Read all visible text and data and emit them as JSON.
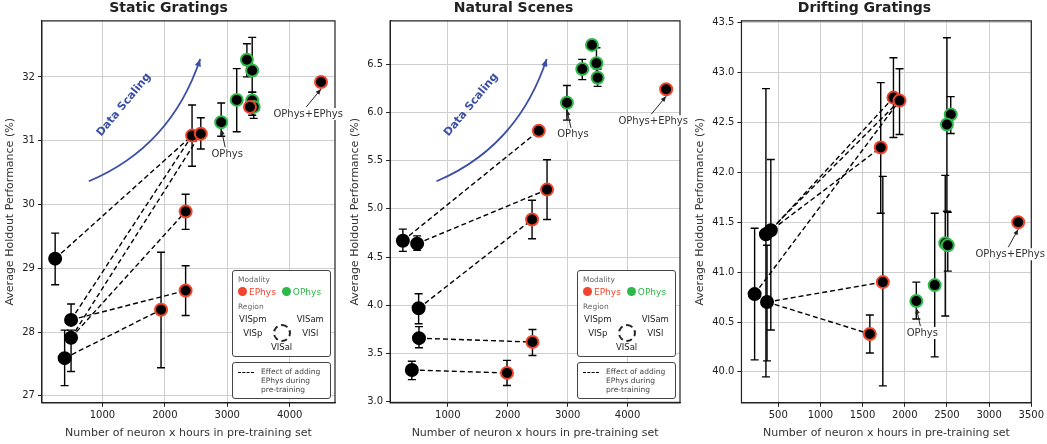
{
  "chart_data": [
    {
      "type": "scatter",
      "title": "Static Gratings",
      "xlabel": "Number of neuron x hours in pre-training set",
      "ylabel": "Average Holdout Performance (%)",
      "xlim": [
        30,
        4727
      ],
      "ylim": [
        26.89,
        32.88
      ],
      "xticks": [
        1000,
        2000,
        3000,
        4000
      ],
      "yticks": [
        27,
        28,
        29,
        30,
        31,
        32
      ],
      "grid": true,
      "legend": "bottom right",
      "legend_title": "Modality",
      "annotations": [
        "Data Scaling",
        "Region",
        "VISpm",
        "VISam",
        "VISp",
        "VISl",
        "VISal",
        {
          "text": "OPhys",
          "x": 2903,
          "y": 31.29
        },
        {
          "text": "OPhys+EPhys",
          "x": 4503,
          "y": 31.92
        }
      ],
      "series": [
        {
          "name": "EPhys",
          "color": "#f0442c",
          "marker": "circle",
          "x": [
            2436,
            2576,
            2333,
            2333,
            1939,
            4503,
            3364
          ],
          "values": [
            31.08,
            31.11,
            29.89,
            28.65,
            28.35,
            31.92,
            31.53
          ],
          "errors": [
            [
              30.6,
              31.56
            ],
            [
              30.87,
              31.36
            ],
            [
              29.61,
              30.16
            ],
            [
              28.26,
              29.04
            ],
            [
              27.44,
              29.25
            ],
            null,
            null
          ]
        },
        {
          "name": "OPhys",
          "color": "#2db84a",
          "marker": "circle",
          "x": [
            2903,
            3152,
            3315,
            3400,
            3400,
            3424
          ],
          "values": [
            31.29,
            31.64,
            32.27,
            32.1,
            31.63,
            31.53
          ],
          "errors": [
            [
              31.07,
              31.59
            ],
            [
              31.14,
              32.13
            ],
            [
              32.0,
              32.52
            ],
            [
              31.76,
              32.62
            ],
            [
              31.4,
              31.76
            ],
            [
              31.35,
              31.6
            ]
          ]
        },
        {
          "color": "#000000",
          "marker": "circle",
          "x": [
            242,
            497,
            497,
            394
          ],
          "values": [
            29.15,
            28.19,
            27.91,
            27.59
          ],
          "errors": [
            [
              28.74,
              29.55
            ],
            [
              28.19,
              28.44
            ],
            [
              27.38,
              28.03
            ],
            [
              27.16,
              28.03
            ]
          ]
        },
        {
          "name": "Effect of adding EPhys during pre-training",
          "color": "#000000",
          "type": "line",
          "line_style": "dashed",
          "marker": "none",
          "x": [
            242,
            2436
          ],
          "values": [
            29.15,
            31.08
          ]
        },
        {
          "color": "#000000",
          "type": "line",
          "line_style": "dashed",
          "marker": "none",
          "x": [
            497,
            2436
          ],
          "values": [
            28.19,
            31.08
          ]
        },
        {
          "color": "#000000",
          "type": "line",
          "line_style": "dashed",
          "marker": "none",
          "x": [
            497,
            2576
          ],
          "values": [
            27.91,
            31.11
          ]
        },
        {
          "color": "#000000",
          "type": "line",
          "line_style": "dashed",
          "marker": "none",
          "x": [
            497,
            2333
          ],
          "values": [
            27.91,
            29.89
          ]
        },
        {
          "color": "#000000",
          "type": "line",
          "line_style": "dashed",
          "marker": "none",
          "x": [
            497,
            2333
          ],
          "values": [
            28.19,
            28.65
          ]
        },
        {
          "color": "#000000",
          "type": "line",
          "line_style": "dashed",
          "marker": "none",
          "x": [
            394,
            1939
          ],
          "values": [
            27.59,
            28.35
          ]
        }
      ]
    },
    {
      "type": "scatter",
      "title": "Natural Scenes",
      "xlabel": "Number of neuron x hours in pre-training set",
      "ylabel": "Average Holdout Performance (%)",
      "xlim": [
        37,
        4875
      ],
      "ylim": [
        2.99,
        6.95
      ],
      "xticks": [
        1000,
        2000,
        3000,
        4000
      ],
      "yticks": [
        {
          "value": 3,
          "label": "3.0"
        },
        3.5,
        {
          "value": 4,
          "label": "4.0"
        },
        4.5,
        {
          "value": 5,
          "label": "5.0"
        },
        5.5,
        {
          "value": 6,
          "label": "6.0"
        },
        6.5
      ],
      "grid": true,
      "legend": "bottom right",
      "legend_title": "Modality",
      "annotations": [
        "Data Scaling",
        "Region",
        "VISpm",
        "VISam",
        "VISp",
        "VISl",
        "VISal",
        {
          "text": "OPhys",
          "x": 2988,
          "y": 6.1
        },
        {
          "text": "OPhys+EPhys",
          "x": 4644,
          "y": 6.24
        }
      ],
      "series": [
        {
          "name": "EPhys",
          "color": "#f0442c",
          "marker": "circle",
          "x": [
            2519,
            2656,
            2406,
            2413,
            1988,
            4644
          ],
          "values": [
            5.81,
            5.2,
            4.89,
            3.62,
            3.3,
            6.24
          ],
          "errors": [
            null,
            [
              4.89,
              5.51
            ],
            [
              4.69,
              5.09
            ],
            [
              3.48,
              3.75
            ],
            [
              3.17,
              3.43
            ],
            null
          ]
        },
        {
          "name": "OPhys",
          "color": "#2db84a",
          "marker": "circle",
          "x": [
            2988,
            3244,
            3406,
            3481,
            3500
          ],
          "values": [
            6.1,
            6.45,
            6.7,
            6.51,
            6.36
          ],
          "errors": [
            [
              5.92,
              6.28
            ],
            [
              6.34,
              6.55
            ],
            null,
            [
              6.36,
              6.67
            ],
            [
              6.27,
              6.45
            ]
          ]
        },
        {
          "color": "#000000",
          "marker": "circle",
          "x": [
            250,
            488,
            513,
            519,
            400
          ],
          "values": [
            4.67,
            4.64,
            3.97,
            3.66,
            3.33
          ],
          "errors": [
            [
              4.56,
              4.79
            ],
            [
              4.57,
              4.72
            ],
            [
              3.81,
              4.12
            ],
            [
              3.56,
              3.78
            ],
            [
              3.23,
              3.42
            ]
          ]
        },
        {
          "name": "Effect of adding EPhys during pre-training",
          "color": "#000000",
          "type": "line",
          "line_style": "dashed",
          "marker": "none",
          "x": [
            250,
            2519
          ],
          "values": [
            4.67,
            5.81
          ]
        },
        {
          "color": "#000000",
          "type": "line",
          "line_style": "dashed",
          "marker": "none",
          "x": [
            488,
            2656
          ],
          "values": [
            4.64,
            5.2
          ]
        },
        {
          "color": "#000000",
          "type": "line",
          "line_style": "dashed",
          "marker": "none",
          "x": [
            513,
            2406
          ],
          "values": [
            3.97,
            4.89
          ]
        },
        {
          "color": "#000000",
          "type": "line",
          "line_style": "dashed",
          "marker": "none",
          "x": [
            519,
            2413
          ],
          "values": [
            3.66,
            3.62
          ]
        },
        {
          "color": "#000000",
          "type": "line",
          "line_style": "dashed",
          "marker": "none",
          "x": [
            400,
            1988
          ],
          "values": [
            3.33,
            3.3
          ]
        }
      ]
    },
    {
      "type": "scatter",
      "title": "Drifting Gratings",
      "xlabel": "Number of neuron x hours in pre-training set",
      "ylabel": "Average Holdout Performance (%)",
      "xlim": [
        64,
        3500
      ],
      "ylim": [
        39.69,
        43.52
      ],
      "xticks": [
        500,
        1000,
        1500,
        2000,
        2500,
        3000,
        3500
      ],
      "yticks": [
        {
          "value": 40,
          "label": "40.0"
        },
        40.5,
        {
          "value": 41,
          "label": "41.0"
        },
        41.5,
        {
          "value": 42,
          "label": "42.0"
        },
        42.5,
        {
          "value": 43,
          "label": "43.0"
        },
        43.5
      ],
      "grid": true,
      "annotations": [
        {
          "text": "OPhys",
          "x": 2137,
          "y": 40.71
        },
        {
          "text": "OPhys+EPhys",
          "x": 3345,
          "y": 41.5
        }
      ],
      "series": [
        {
          "color": "#f0442c",
          "marker": "circle",
          "x": [
            1866,
            1938,
            1715,
            1740,
            1586,
            3345
          ],
          "values": [
            42.75,
            42.72,
            42.25,
            40.9,
            40.38,
            41.5
          ],
          "errors": [
            [
              42.35,
              43.15
            ],
            [
              42.38,
              43.04
            ],
            [
              41.59,
              42.9
            ],
            [
              39.86,
              41.96
            ],
            [
              40.19,
              40.57
            ],
            null
          ]
        },
        {
          "color": "#2db84a",
          "marker": "circle",
          "x": [
            2137,
            2355,
            2480,
            2510,
            2545,
            2500
          ],
          "values": [
            40.71,
            40.87,
            41.29,
            41.27,
            42.58,
            42.48
          ],
          "errors": [
            [
              40.53,
              40.9
            ],
            [
              40.15,
              41.59
            ],
            [
              40.56,
              41.97
            ],
            [
              41.01,
              41.6
            ],
            [
              42.39,
              42.76
            ],
            [
              41.61,
              43.35
            ]
          ]
        },
        {
          "color": "#000000",
          "marker": "circle",
          "x": [
            220,
            354,
            412,
            367
          ],
          "values": [
            40.78,
            41.38,
            41.42,
            40.7
          ],
          "errors": [
            [
              40.12,
              41.44
            ],
            [
              39.95,
              42.84
            ],
            [
              40.42,
              42.13
            ],
            [
              40.11,
              41.27
            ]
          ]
        },
        {
          "color": "#000000",
          "type": "line",
          "line_style": "dashed",
          "marker": "none",
          "x": [
            412,
            1866
          ],
          "values": [
            41.42,
            42.75
          ]
        },
        {
          "color": "#000000",
          "type": "line",
          "line_style": "dashed",
          "marker": "none",
          "x": [
            354,
            1938
          ],
          "values": [
            41.38,
            42.72
          ]
        },
        {
          "color": "#000000",
          "type": "line",
          "line_style": "dashed",
          "marker": "none",
          "x": [
            220,
            1938
          ],
          "values": [
            40.78,
            42.72
          ]
        },
        {
          "color": "#000000",
          "type": "line",
          "line_style": "dashed",
          "marker": "none",
          "x": [
            354,
            1715
          ],
          "values": [
            41.38,
            42.25
          ]
        },
        {
          "color": "#000000",
          "type": "line",
          "line_style": "dashed",
          "marker": "none",
          "x": [
            367,
            1740
          ],
          "values": [
            40.7,
            40.9
          ]
        },
        {
          "color": "#000000",
          "type": "line",
          "line_style": "dashed",
          "marker": "none",
          "x": [
            367,
            1586
          ],
          "values": [
            40.7,
            40.38
          ]
        }
      ]
    }
  ]
}
